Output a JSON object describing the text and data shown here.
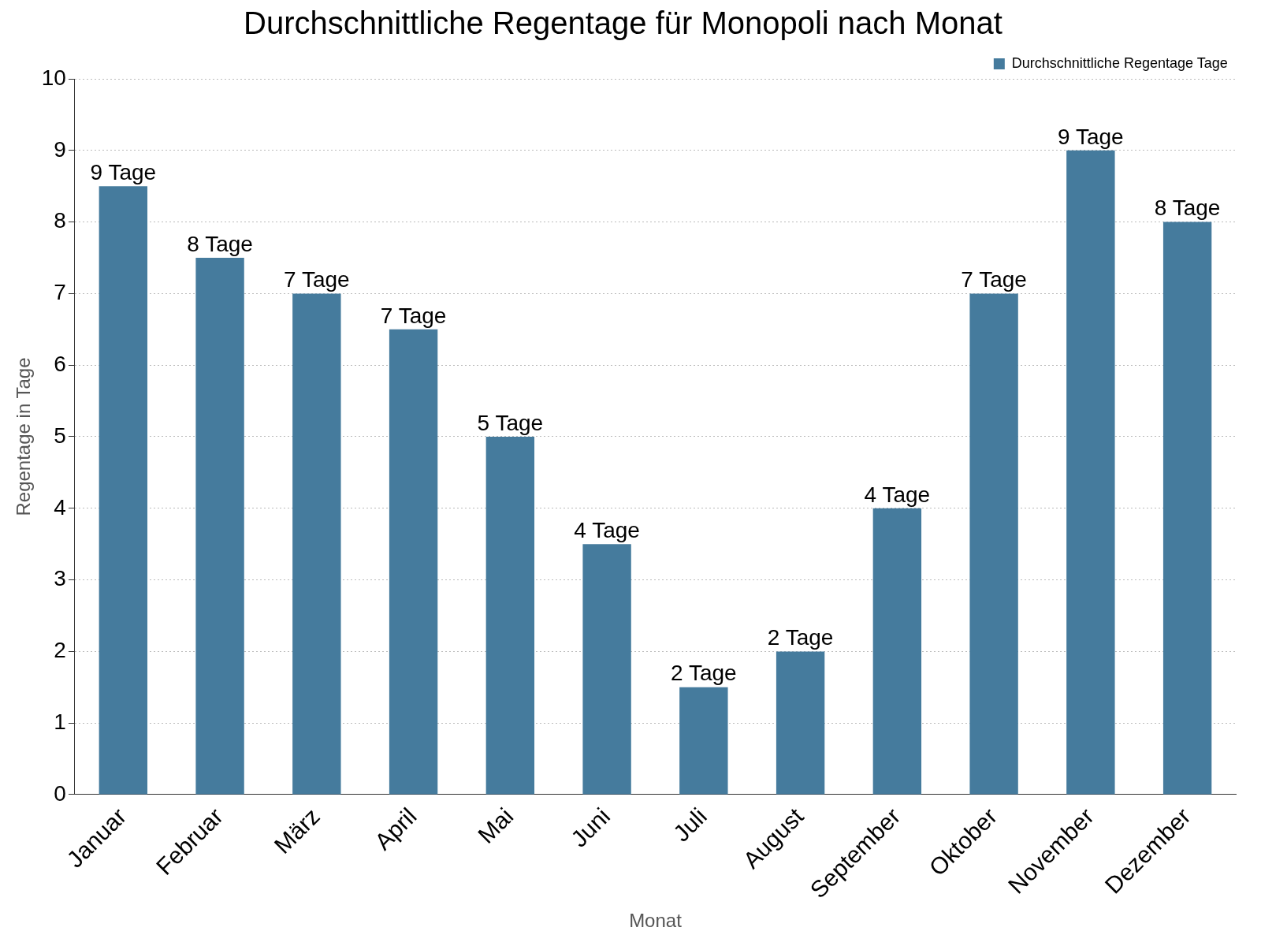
{
  "chart_data": {
    "type": "bar",
    "title": "Durchschnittliche Regentage für Monopoli nach Monat",
    "xlabel": "Monat",
    "ylabel": "Regentage in Tage",
    "categories": [
      "Januar",
      "Februar",
      "März",
      "April",
      "Mai",
      "Juni",
      "Juli",
      "August",
      "September",
      "Oktober",
      "November",
      "Dezember"
    ],
    "series": [
      {
        "name": "Durchschnittliche Regentage Tage",
        "color": "#457b9d",
        "values": [
          8.5,
          7.5,
          7,
          6.5,
          5,
          3.5,
          1.5,
          2,
          4,
          7,
          9,
          8
        ],
        "value_labels": [
          "9 Tage",
          "8 Tage",
          "7 Tage",
          "7 Tage",
          "5 Tage",
          "4 Tage",
          "2 Tage",
          "2 Tage",
          "4 Tage",
          "7 Tage",
          "9 Tage",
          "8 Tage"
        ]
      }
    ],
    "ylim": [
      0,
      10
    ],
    "yticks": [
      0,
      1,
      2,
      3,
      4,
      5,
      6,
      7,
      8,
      9,
      10
    ],
    "grid": "y",
    "legend": "top right"
  }
}
